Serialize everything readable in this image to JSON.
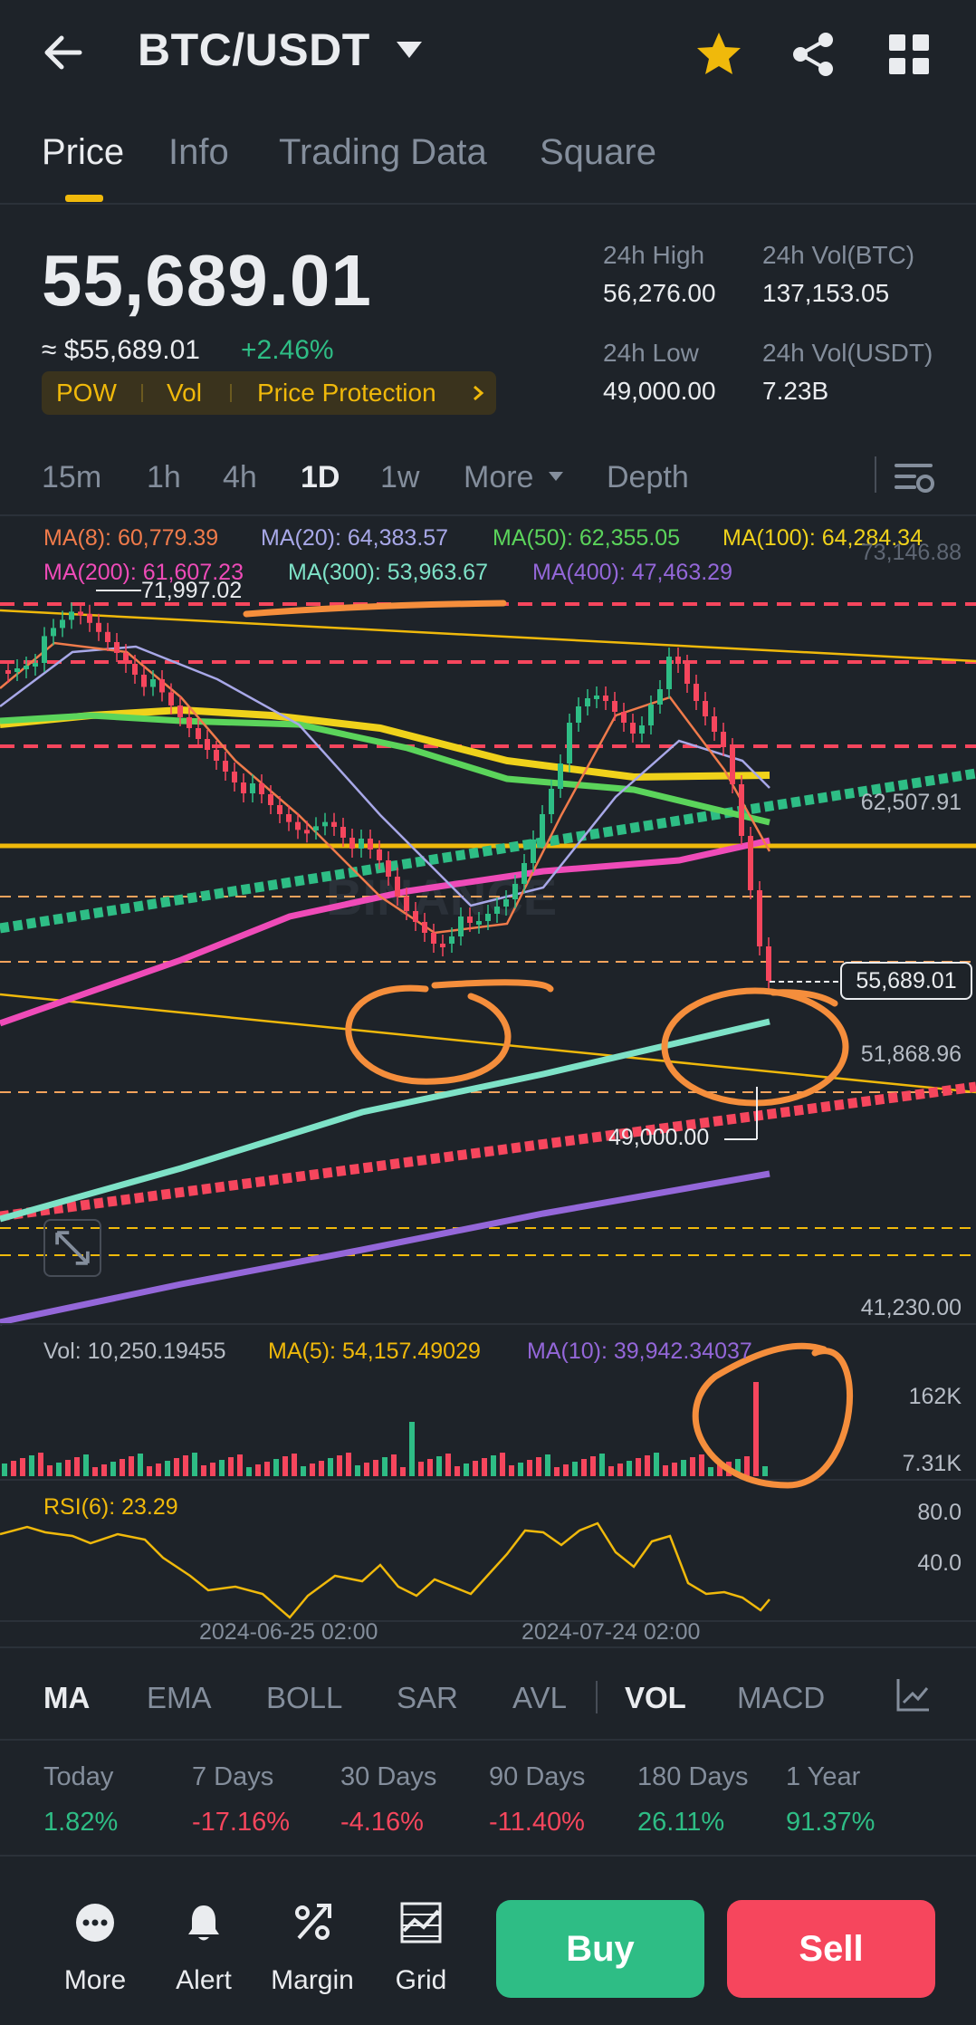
{
  "header": {
    "pair": "BTC/USDT",
    "icons": [
      "back-arrow-icon",
      "caret-down-icon",
      "star-icon",
      "share-icon",
      "grid-icon"
    ],
    "star_color": "#f0b90b"
  },
  "tabs": [
    {
      "label": "Price",
      "active": true
    },
    {
      "label": "Info"
    },
    {
      "label": "Trading Data"
    },
    {
      "label": "Square"
    }
  ],
  "price": {
    "last": "55,689.01",
    "fiat": "≈ $55,689.01",
    "change": "+2.46%"
  },
  "tags": [
    "POW",
    "Vol",
    "Price Protection"
  ],
  "stats": {
    "high_label": "24h High",
    "high_value": "56,276.00",
    "vol_btc_label": "24h Vol(BTC)",
    "vol_btc_value": "137,153.05",
    "low_label": "24h Low",
    "low_value": "49,000.00",
    "vol_usdt_label": "24h Vol(USDT)",
    "vol_usdt_value": "7.23B"
  },
  "intervals": [
    "15m",
    "1h",
    "4h",
    "1D",
    "1w",
    "More",
    "Depth"
  ],
  "active_interval": "1D",
  "ma_legend": {
    "ma8": "MA(8): 60,779.39",
    "ma20": "MA(20): 64,383.57",
    "ma50": "MA(50): 62,355.05",
    "ma100": "MA(100): 64,284.34",
    "ma200": "MA(200): 61,607.23",
    "ma300": "MA(300): 53,963.67",
    "ma400": "MA(400): 47,463.29"
  },
  "price_axis": {
    "top": "73,146.88",
    "mid": "62,507.91",
    "current": "55,689.01",
    "low": "51,868.96",
    "bottom": "41,230.00",
    "high_marker": "71,997.02",
    "low_marker": "49,000.00"
  },
  "volume_legend": {
    "vol": "Vol: 10,250.19455",
    "ma5": "MA(5): 54,157.49029",
    "ma10": "MA(10): 39,942.34037",
    "axis_high": "162K",
    "axis_low": "7.31K"
  },
  "rsi": {
    "label": "RSI(6): 23.29",
    "axis_high": "80.0",
    "axis_low": "40.0"
  },
  "dates": [
    "2024-06-25 02:00",
    "2024-07-24 02:00"
  ],
  "indicators": [
    "MA",
    "EMA",
    "BOLL",
    "SAR",
    "AVL",
    "VOL",
    "MACD"
  ],
  "performance": [
    {
      "label": "Today",
      "value": "1.82%",
      "color": "#2ebd85"
    },
    {
      "label": "7 Days",
      "value": "-17.16%",
      "color": "#f6465d"
    },
    {
      "label": "30 Days",
      "value": "-4.16%",
      "color": "#f6465d"
    },
    {
      "label": "90 Days",
      "value": "-11.40%",
      "color": "#f6465d"
    },
    {
      "label": "180 Days",
      "value": "26.11%",
      "color": "#2ebd85"
    },
    {
      "label": "1 Year",
      "value": "91.37%",
      "color": "#2ebd85"
    }
  ],
  "bottom_nav": [
    {
      "label": "More",
      "icon": "more-icon"
    },
    {
      "label": "Alert",
      "icon": "bell-icon"
    },
    {
      "label": "Margin",
      "icon": "margin-icon"
    },
    {
      "label": "Grid",
      "icon": "grid-chart-icon"
    }
  ],
  "actions": {
    "buy": "Buy",
    "sell": "Sell"
  },
  "colors": {
    "up": "#2ebd85",
    "down": "#f6465d",
    "accent": "#f0b90b",
    "bg": "#1e2329"
  }
}
